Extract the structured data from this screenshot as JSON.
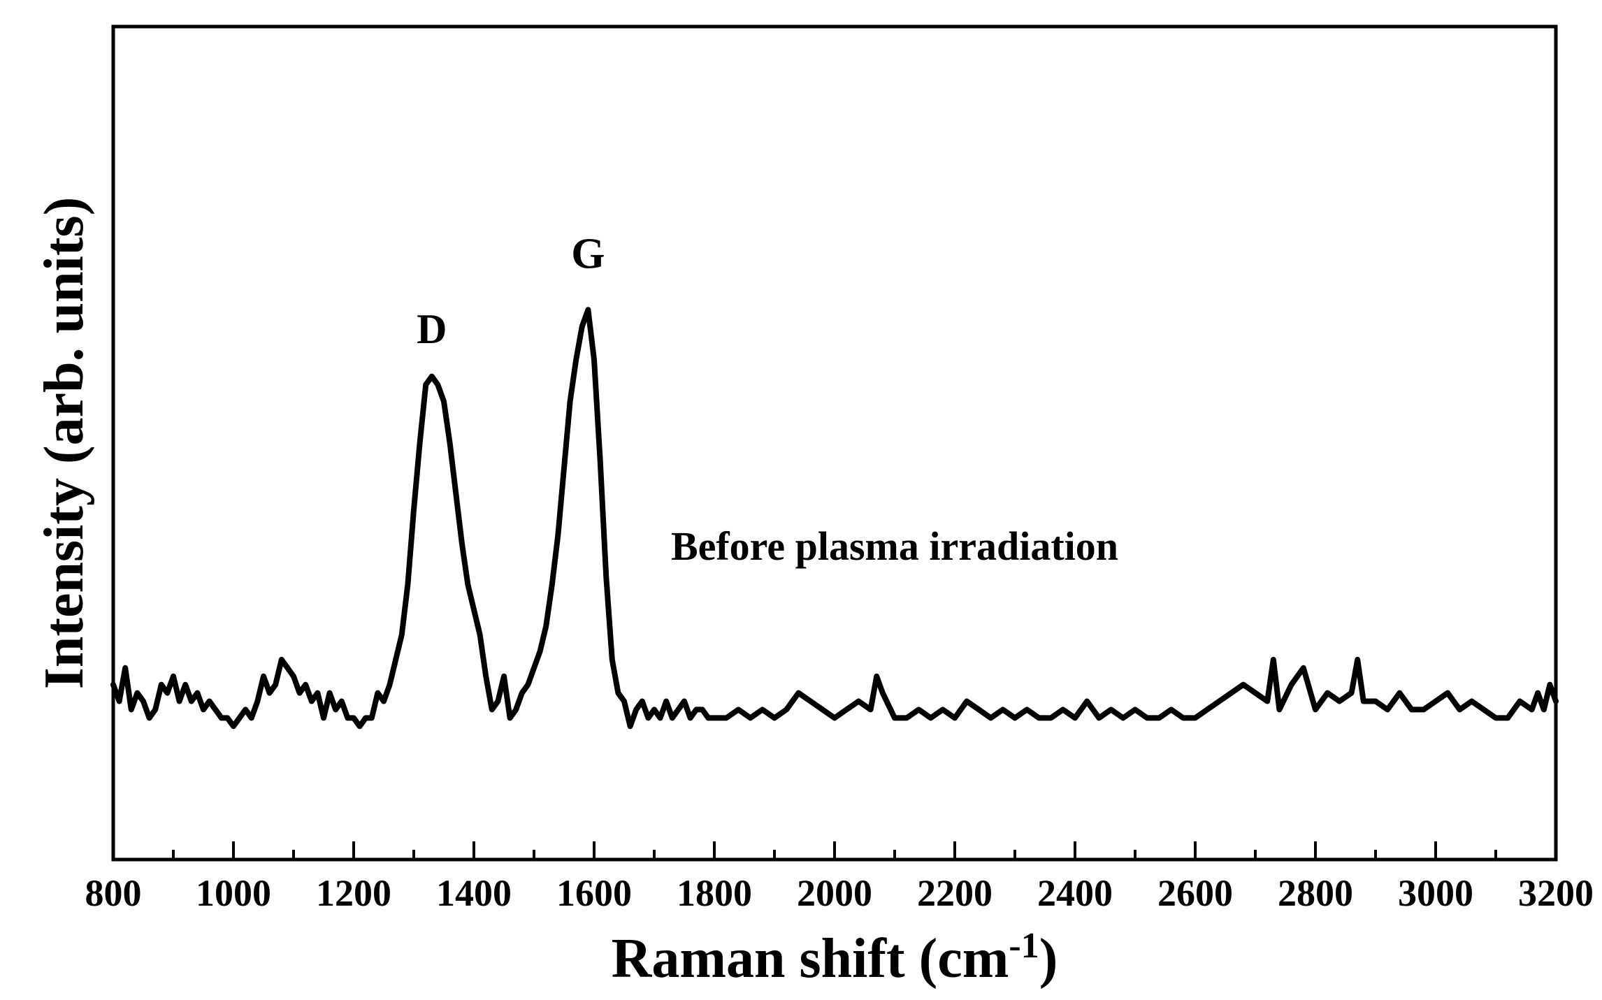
{
  "chart_data": {
    "type": "line",
    "title": "",
    "xlabel": "Raman shift (cm",
    "xlabel_sup": "-1",
    "xlabel_close": ")",
    "ylabel": "Intensity (arb. units)",
    "xlim": [
      800,
      3200
    ],
    "ylim": [
      0,
      1
    ],
    "x_ticks": [
      800,
      1000,
      1200,
      1400,
      1600,
      1800,
      2000,
      2200,
      2400,
      2600,
      2800,
      3000,
      3200
    ],
    "y_ticks_labeled": false,
    "grid": false,
    "line_color": "#000000",
    "annotations": [
      {
        "text": "D",
        "x": 1330,
        "y": 0.62
      },
      {
        "text": "G",
        "x": 1590,
        "y": 0.71
      },
      {
        "text": "Before plasma irradiation",
        "x": 2100,
        "y": 0.36
      }
    ],
    "series": [
      {
        "x": [
          800,
          810,
          820,
          830,
          840,
          850,
          860,
          870,
          880,
          890,
          900,
          910,
          920,
          930,
          940,
          950,
          960,
          970,
          980,
          990,
          1000,
          1010,
          1020,
          1030,
          1040,
          1050,
          1060,
          1070,
          1080,
          1090,
          1100,
          1110,
          1120,
          1130,
          1140,
          1150,
          1160,
          1170,
          1180,
          1190,
          1200,
          1210,
          1220,
          1230,
          1240,
          1250,
          1260,
          1270,
          1280,
          1290,
          1300,
          1310,
          1320,
          1330,
          1340,
          1350,
          1360,
          1370,
          1380,
          1390,
          1400,
          1410,
          1420,
          1430,
          1440,
          1450,
          1460,
          1470,
          1480,
          1490,
          1500,
          1510,
          1520,
          1530,
          1540,
          1550,
          1560,
          1570,
          1580,
          1590,
          1600,
          1610,
          1620,
          1630,
          1640,
          1650,
          1660,
          1670,
          1680,
          1690,
          1700,
          1710,
          1720,
          1730,
          1740,
          1750,
          1760,
          1770,
          1780,
          1790,
          1800,
          1820,
          1840,
          1860,
          1880,
          1900,
          1920,
          1940,
          1960,
          1980,
          2000,
          2020,
          2040,
          2060,
          2070,
          2080,
          2100,
          2120,
          2140,
          2160,
          2180,
          2200,
          2220,
          2240,
          2260,
          2280,
          2300,
          2320,
          2340,
          2360,
          2380,
          2400,
          2420,
          2440,
          2460,
          2480,
          2500,
          2520,
          2540,
          2560,
          2580,
          2600,
          2620,
          2640,
          2660,
          2680,
          2700,
          2720,
          2730,
          2740,
          2760,
          2780,
          2800,
          2820,
          2840,
          2860,
          2870,
          2880,
          2900,
          2920,
          2940,
          2960,
          2980,
          3000,
          3020,
          3040,
          3060,
          3080,
          3100,
          3120,
          3140,
          3160,
          3170,
          3180,
          3190,
          3200
        ],
        "y": [
          0.21,
          0.19,
          0.23,
          0.18,
          0.2,
          0.19,
          0.17,
          0.18,
          0.21,
          0.2,
          0.22,
          0.19,
          0.21,
          0.19,
          0.2,
          0.18,
          0.19,
          0.18,
          0.17,
          0.17,
          0.16,
          0.17,
          0.18,
          0.17,
          0.19,
          0.22,
          0.2,
          0.21,
          0.24,
          0.23,
          0.22,
          0.2,
          0.21,
          0.19,
          0.2,
          0.17,
          0.2,
          0.18,
          0.19,
          0.17,
          0.17,
          0.16,
          0.17,
          0.17,
          0.2,
          0.19,
          0.21,
          0.24,
          0.27,
          0.33,
          0.42,
          0.5,
          0.57,
          0.58,
          0.57,
          0.55,
          0.5,
          0.44,
          0.38,
          0.33,
          0.3,
          0.27,
          0.22,
          0.18,
          0.19,
          0.22,
          0.17,
          0.18,
          0.2,
          0.21,
          0.23,
          0.25,
          0.28,
          0.33,
          0.39,
          0.47,
          0.55,
          0.6,
          0.64,
          0.66,
          0.6,
          0.48,
          0.34,
          0.24,
          0.2,
          0.19,
          0.16,
          0.18,
          0.19,
          0.17,
          0.18,
          0.17,
          0.19,
          0.17,
          0.18,
          0.19,
          0.17,
          0.18,
          0.18,
          0.17,
          0.17,
          0.17,
          0.18,
          0.17,
          0.18,
          0.17,
          0.18,
          0.2,
          0.19,
          0.18,
          0.17,
          0.18,
          0.19,
          0.18,
          0.22,
          0.2,
          0.17,
          0.17,
          0.18,
          0.17,
          0.18,
          0.17,
          0.19,
          0.18,
          0.17,
          0.18,
          0.17,
          0.18,
          0.17,
          0.17,
          0.18,
          0.17,
          0.19,
          0.17,
          0.18,
          0.17,
          0.18,
          0.17,
          0.17,
          0.18,
          0.17,
          0.17,
          0.18,
          0.19,
          0.2,
          0.21,
          0.2,
          0.19,
          0.24,
          0.18,
          0.21,
          0.23,
          0.18,
          0.2,
          0.19,
          0.2,
          0.24,
          0.19,
          0.19,
          0.18,
          0.2,
          0.18,
          0.18,
          0.19,
          0.2,
          0.18,
          0.19,
          0.18,
          0.17,
          0.17,
          0.19,
          0.18,
          0.2,
          0.18,
          0.21,
          0.19
        ]
      }
    ]
  }
}
